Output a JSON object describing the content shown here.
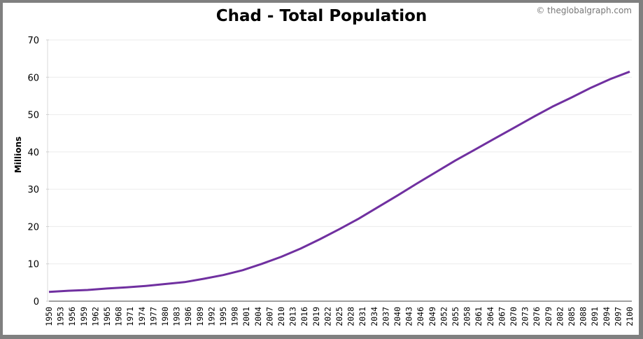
{
  "header": {
    "title": "Chad - Total Population",
    "credit": "© theglobalgraph.com"
  },
  "colors": {
    "line": "#7030A0",
    "grid": "#ebebeb",
    "axis": "#808080",
    "border": "#808080"
  },
  "chart_data": {
    "type": "line",
    "title": "Chad - Total Population",
    "xlabel": "",
    "ylabel": "Millions",
    "ylim": [
      0,
      70
    ],
    "yticks": [
      0,
      10,
      20,
      30,
      40,
      50,
      60,
      70
    ],
    "xlim": [
      1950,
      2100
    ],
    "xticks": [
      1950,
      1953,
      1956,
      1959,
      1962,
      1965,
      1968,
      1971,
      1974,
      1977,
      1980,
      1983,
      1986,
      1989,
      1992,
      1995,
      1998,
      2001,
      2004,
      2007,
      2010,
      2013,
      2016,
      2019,
      2022,
      2025,
      2028,
      2031,
      2034,
      2037,
      2040,
      2043,
      2046,
      2049,
      2052,
      2055,
      2058,
      2061,
      2064,
      2067,
      2070,
      2073,
      2076,
      2079,
      2082,
      2085,
      2088,
      2091,
      2094,
      2097,
      2100
    ],
    "grid": true,
    "legend": null,
    "series": [
      {
        "name": "Total Population (Millions)",
        "x": [
          1950,
          1955,
          1960,
          1965,
          1970,
          1975,
          1980,
          1985,
          1990,
          1995,
          2000,
          2005,
          2010,
          2015,
          2020,
          2025,
          2030,
          2035,
          2040,
          2045,
          2050,
          2055,
          2060,
          2065,
          2070,
          2075,
          2080,
          2085,
          2090,
          2095,
          2100
        ],
        "values": [
          2.5,
          2.8,
          3.0,
          3.4,
          3.7,
          4.1,
          4.6,
          5.1,
          6.0,
          7.0,
          8.3,
          10.0,
          11.9,
          14.1,
          16.6,
          19.3,
          22.1,
          25.2,
          28.3,
          31.5,
          34.6,
          37.7,
          40.6,
          43.5,
          46.4,
          49.3,
          52.1,
          54.6,
          57.2,
          59.5,
          61.5
        ]
      }
    ]
  }
}
